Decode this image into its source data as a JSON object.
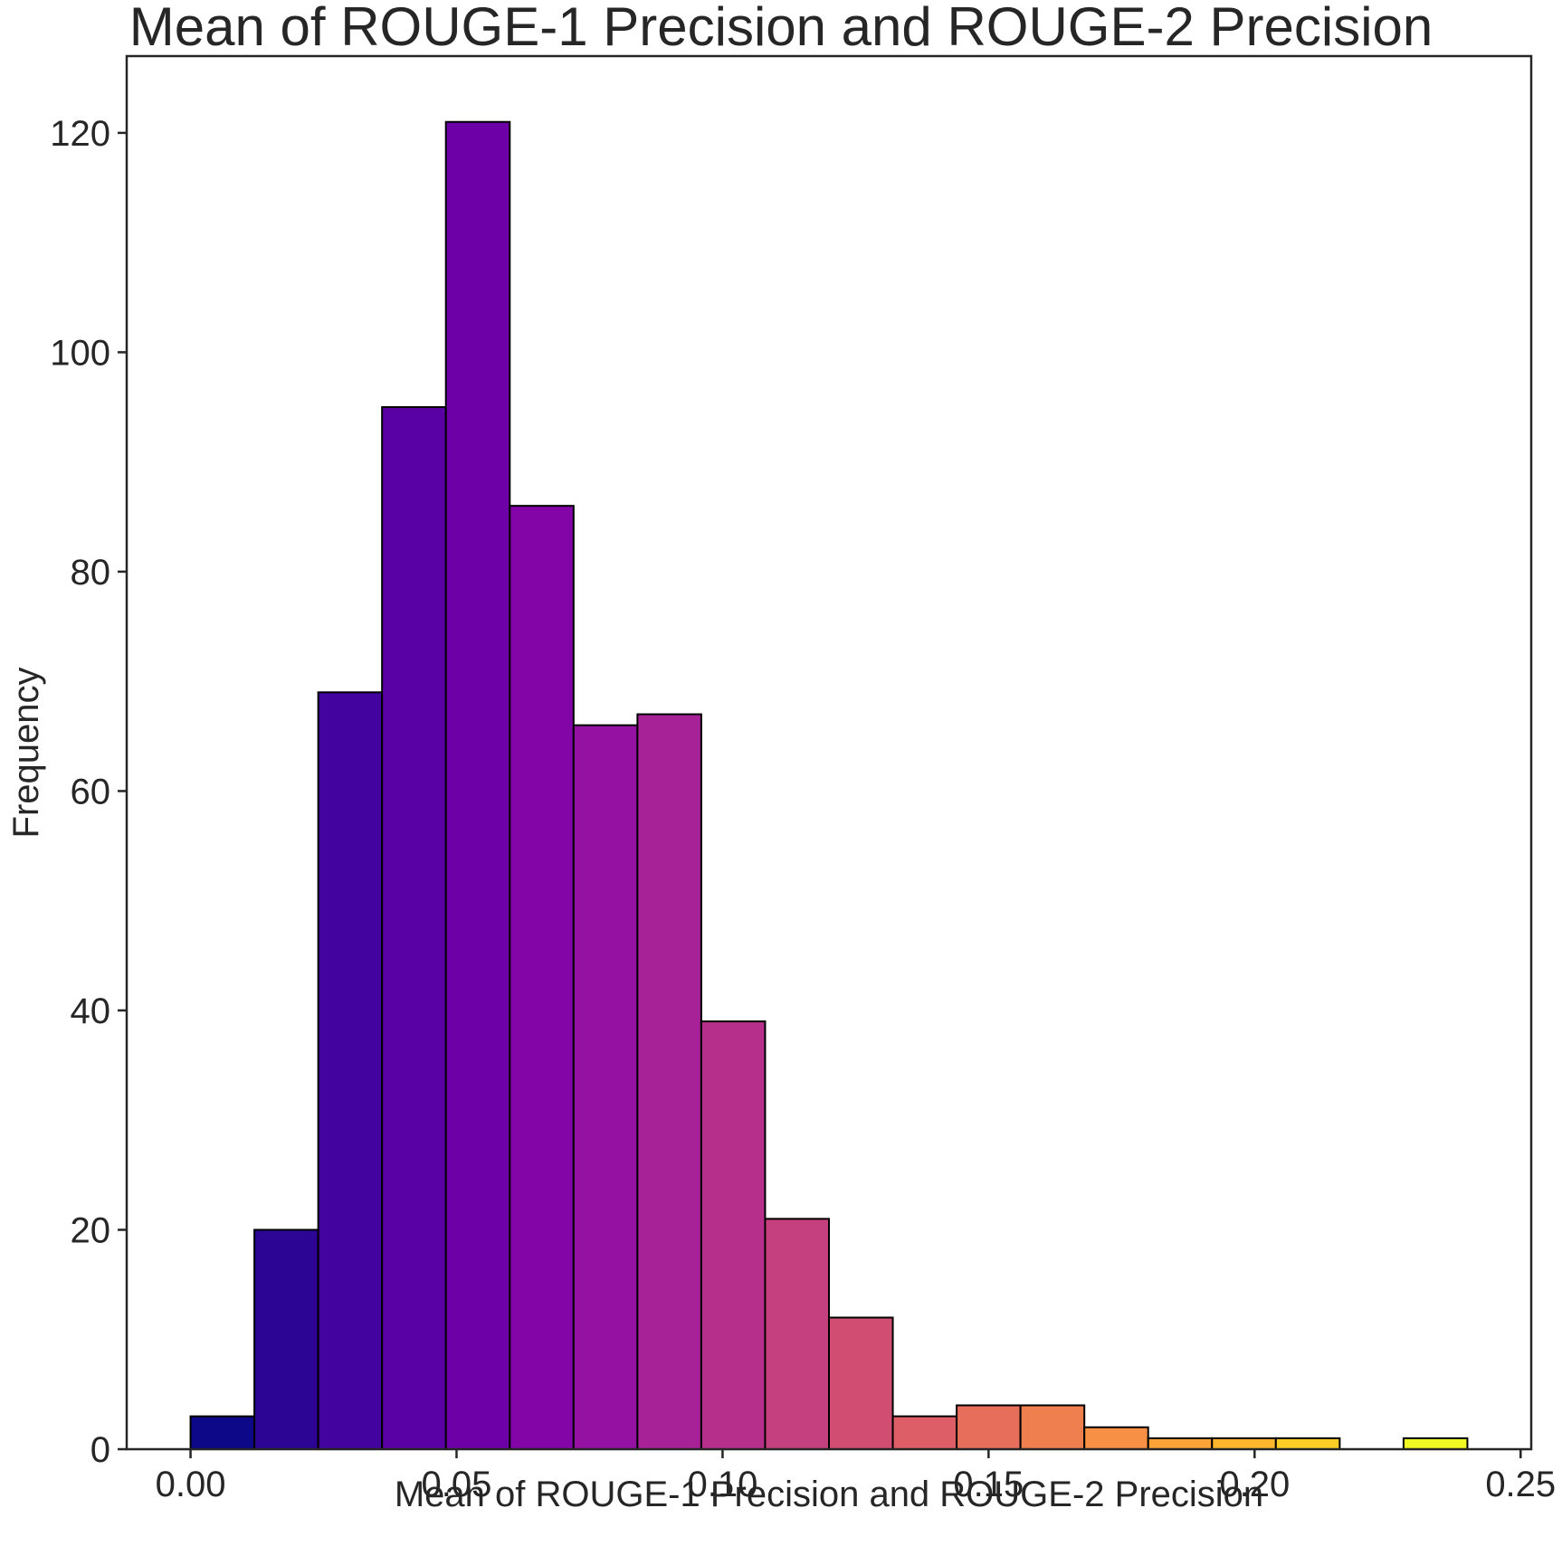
{
  "chart_data": {
    "type": "bar",
    "title": "Mean of ROUGE-1 Precision and ROUGE-2 Precision",
    "xlabel": "Mean of ROUGE-1 Precision and ROUGE-2 Precision",
    "ylabel": "Frequency",
    "xlim": [
      -0.012,
      0.252
    ],
    "ylim": [
      0,
      127
    ],
    "xticks": [
      "0.00",
      "0.05",
      "0.10",
      "0.15",
      "0.20",
      "0.25"
    ],
    "xtick_values": [
      0,
      0.05,
      0.1,
      0.15,
      0.2,
      0.25
    ],
    "yticks": [
      "0",
      "20",
      "40",
      "60",
      "80",
      "100",
      "120"
    ],
    "ytick_values": [
      0,
      20,
      40,
      60,
      80,
      100,
      120
    ],
    "grid": false,
    "colormap": "plasma",
    "bin_start": 0.0,
    "bin_width": 0.012,
    "values": [
      3,
      20,
      69,
      95,
      121,
      86,
      66,
      67,
      39,
      21,
      12,
      3,
      4,
      4,
      2,
      1,
      1,
      1,
      0,
      1
    ],
    "colors": [
      "#0d0887",
      "#2c0594",
      "#43039e",
      "#5a01a5",
      "#6e00a8",
      "#8305a7",
      "#9511a1",
      "#a72197",
      "#b6308b",
      "#c5407e",
      "#d14e72",
      "#dd5e66",
      "#e76e5b",
      "#f07f4f",
      "#f79044",
      "#fca338",
      "#feb72d",
      "#fccd25",
      "#f7e225",
      "#f0f921"
    ]
  }
}
